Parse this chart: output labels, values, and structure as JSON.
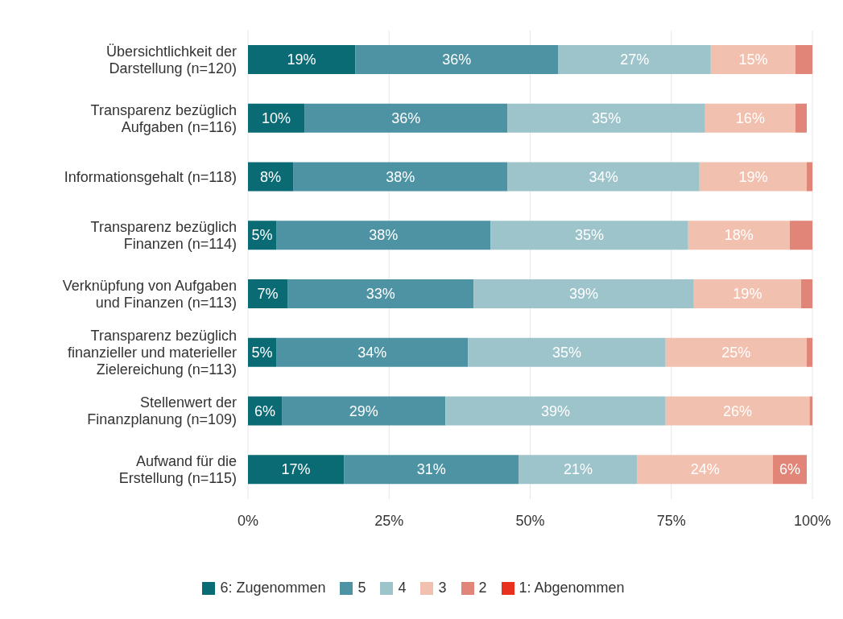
{
  "chart_data": {
    "type": "bar",
    "orientation": "horizontal",
    "stacked": true,
    "categories": [
      "Übersichtlichkeit der\nDarstellung (n=120)",
      "Transparenz bezüglich\nAufgaben (n=116)",
      "Informationsgehalt (n=118)",
      "Transparenz bezüglich\nFinanzen (n=114)",
      "Verknüpfung von Aufgaben\nund Finanzen (n=113)",
      "Transparenz bezüglich\nfinanzieller und materieller\nZielereichung (n=113)",
      "Stellenwert der\nFinanzplanung (n=109)",
      "Aufwand für die\nErstellung (n=115)"
    ],
    "series": [
      {
        "name": "6: Zugenommen",
        "color": "#0b6b75",
        "values": [
          19,
          10,
          8,
          5,
          7,
          5,
          6,
          17
        ],
        "value_labels": [
          "19%",
          "10%",
          "8%",
          "5%",
          "7%",
          "5%",
          "6%",
          "17%"
        ]
      },
      {
        "name": "5",
        "color": "#4d93a3",
        "values": [
          36,
          36,
          38,
          38,
          33,
          34,
          29,
          31
        ],
        "value_labels": [
          "36%",
          "36%",
          "38%",
          "38%",
          "33%",
          "34%",
          "29%",
          "31%"
        ]
      },
      {
        "name": "4",
        "color": "#9dc4cb",
        "values": [
          27,
          35,
          34,
          35,
          39,
          35,
          39,
          21
        ],
        "value_labels": [
          "27%",
          "35%",
          "34%",
          "35%",
          "39%",
          "35%",
          "39%",
          "21%"
        ]
      },
      {
        "name": "3",
        "color": "#f2c0af",
        "values": [
          15,
          16,
          19,
          18,
          19,
          25,
          25.5,
          24
        ],
        "value_labels": [
          "15%",
          "16%",
          "19%",
          "18%",
          "19%",
          "25%",
          "26%",
          "24%"
        ]
      },
      {
        "name": "2",
        "color": "#e08577",
        "values": [
          3,
          2,
          1,
          4,
          2,
          1,
          0.5,
          6
        ],
        "value_labels": [
          null,
          null,
          null,
          null,
          null,
          null,
          null,
          "6%"
        ]
      },
      {
        "name": "1: Abgenommen",
        "color": "#e8321e",
        "values": [
          0,
          0,
          0,
          0,
          0,
          0,
          0,
          0
        ],
        "value_labels": [
          null,
          null,
          null,
          null,
          null,
          null,
          null,
          null
        ]
      }
    ],
    "xlim": [
      0,
      100
    ],
    "xticks": [
      {
        "value": 0,
        "label": "0%"
      },
      {
        "value": 25,
        "label": "25%"
      },
      {
        "value": 50,
        "label": "50%"
      },
      {
        "value": 75,
        "label": "75%"
      },
      {
        "value": 100,
        "label": "100%"
      }
    ],
    "grid": "x",
    "legend": "bottom"
  }
}
